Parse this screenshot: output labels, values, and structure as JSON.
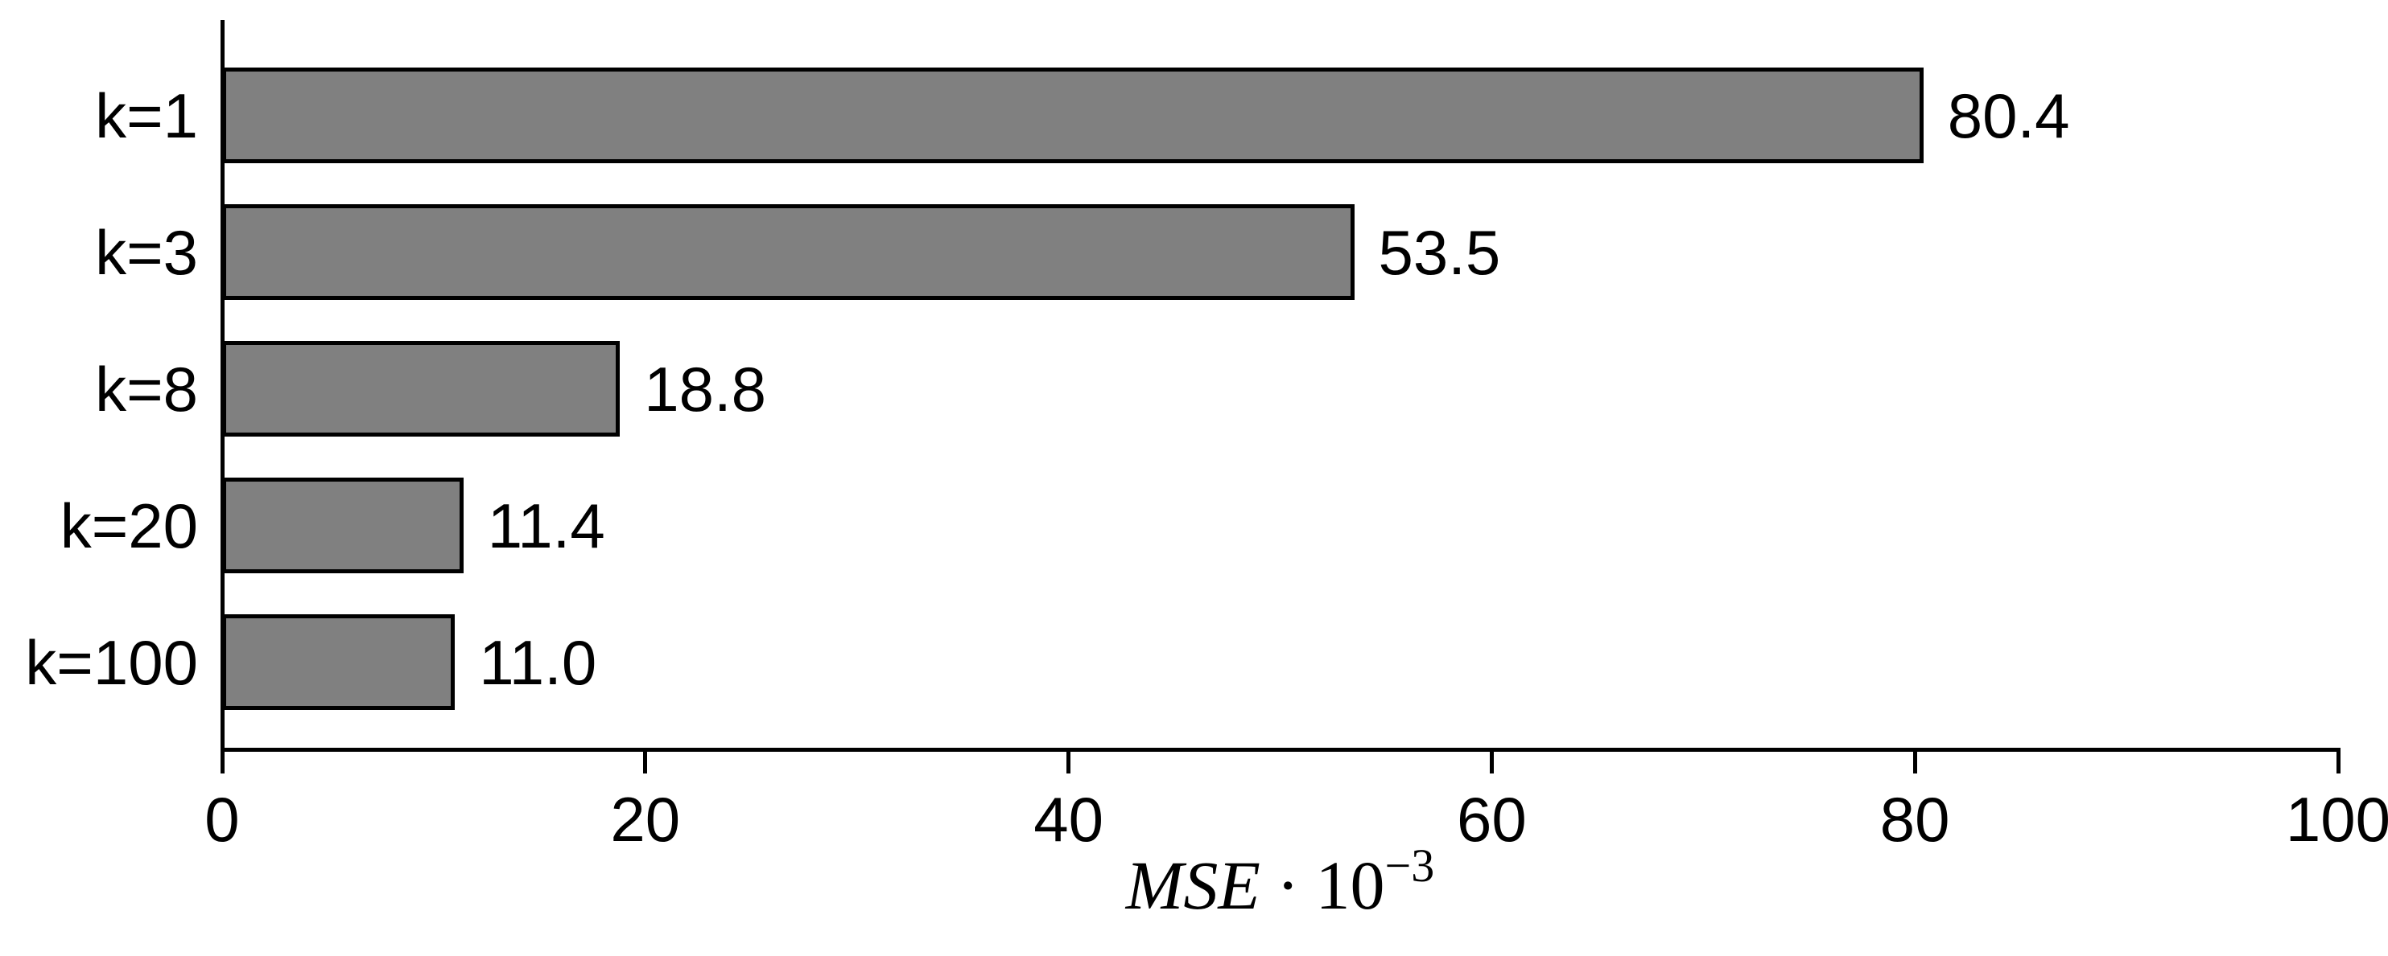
{
  "chart_data": {
    "type": "bar",
    "orientation": "horizontal",
    "title": "",
    "categories": [
      "k=1",
      "k=3",
      "k=8",
      "k=20",
      "k=100"
    ],
    "values": [
      80.4,
      53.5,
      18.8,
      11.4,
      11.0
    ],
    "value_labels": [
      "80.4",
      "53.5",
      "18.8",
      "11.4",
      "11.0"
    ],
    "xlabel": "MSE · 10⁻³",
    "xlabel_parts": {
      "variable": "MSE",
      "operator": "·",
      "base": "10",
      "exponent": "−3"
    },
    "ylabel": "",
    "xlim": [
      0,
      100
    ],
    "xticks": [
      0,
      20,
      40,
      60,
      80,
      100
    ],
    "xtick_labels": [
      "0",
      "20",
      "40",
      "60",
      "80",
      "100"
    ],
    "grid": false,
    "legend_position": "none",
    "bar_color": "#808080",
    "bar_border_color": "#000000",
    "axis_color": "#000000",
    "text_color": "#000000"
  }
}
